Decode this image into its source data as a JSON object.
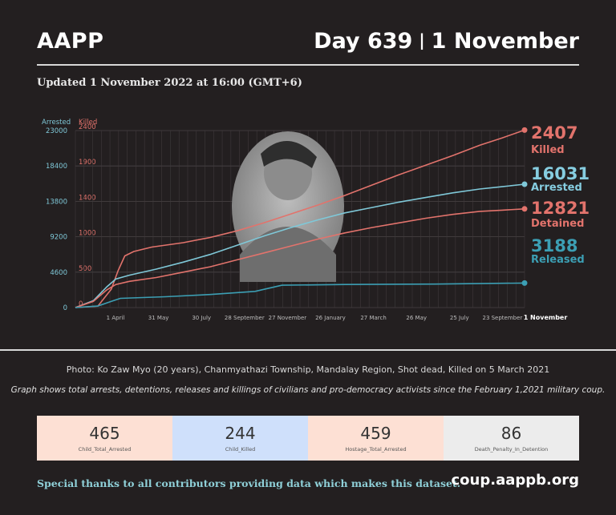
{
  "header": {
    "org": "AAPP",
    "day_label": "Day 639",
    "separator": "|",
    "date_label": "1 November"
  },
  "updated": "Updated 1 November 2022 at 16:00 (GMT+6)",
  "chart_data": {
    "type": "line",
    "title": "",
    "x_ticks": [
      "1 April",
      "31 May",
      "30 July",
      "28 September",
      "27 November",
      "26 January",
      "27 March",
      "26 May",
      "25 July",
      "23 September",
      "1 November"
    ],
    "left_axis": {
      "label": "Arrested",
      "ticks": [
        0,
        4600,
        9200,
        13800,
        18400,
        23000
      ],
      "range": [
        0,
        23000
      ],
      "color": "#7fc8d8"
    },
    "right_axis": {
      "label": "Killed",
      "ticks": [
        0,
        500,
        1000,
        1400,
        1900,
        2400
      ],
      "range": [
        0,
        2400
      ],
      "color": "#e2736c"
    },
    "grid": true,
    "series": [
      {
        "name": "Killed",
        "axis": "killed",
        "color": "#e2736c",
        "latest": "2407",
        "points": [
          [
            0,
            0
          ],
          [
            0.05,
            20
          ],
          [
            0.08,
            250
          ],
          [
            0.095,
            500
          ],
          [
            0.11,
            700
          ],
          [
            0.13,
            760
          ],
          [
            0.17,
            820
          ],
          [
            0.24,
            880
          ],
          [
            0.3,
            950
          ],
          [
            0.36,
            1040
          ],
          [
            0.42,
            1150
          ],
          [
            0.48,
            1270
          ],
          [
            0.54,
            1390
          ],
          [
            0.6,
            1520
          ],
          [
            0.66,
            1660
          ],
          [
            0.72,
            1800
          ],
          [
            0.78,
            1930
          ],
          [
            0.84,
            2060
          ],
          [
            0.9,
            2200
          ],
          [
            0.95,
            2300
          ],
          [
            1.0,
            2407
          ]
        ]
      },
      {
        "name": "Arrested",
        "axis": "arrested",
        "color": "#7fc8d8",
        "latest": "16031",
        "points": [
          [
            0,
            0
          ],
          [
            0.04,
            900
          ],
          [
            0.07,
            2700
          ],
          [
            0.09,
            3700
          ],
          [
            0.12,
            4200
          ],
          [
            0.18,
            5000
          ],
          [
            0.24,
            5900
          ],
          [
            0.3,
            6900
          ],
          [
            0.36,
            8100
          ],
          [
            0.42,
            9300
          ],
          [
            0.48,
            10400
          ],
          [
            0.54,
            11400
          ],
          [
            0.6,
            12300
          ],
          [
            0.66,
            13000
          ],
          [
            0.72,
            13700
          ],
          [
            0.78,
            14300
          ],
          [
            0.84,
            14900
          ],
          [
            0.9,
            15400
          ],
          [
            0.95,
            15700
          ],
          [
            1.0,
            16031
          ]
        ]
      },
      {
        "name": "Detained",
        "axis": "arrested",
        "color": "#e2736c",
        "latest": "12821",
        "points": [
          [
            0,
            0
          ],
          [
            0.04,
            800
          ],
          [
            0.07,
            2300
          ],
          [
            0.09,
            3000
          ],
          [
            0.12,
            3400
          ],
          [
            0.18,
            3900
          ],
          [
            0.24,
            4600
          ],
          [
            0.3,
            5300
          ],
          [
            0.36,
            6200
          ],
          [
            0.42,
            7100
          ],
          [
            0.48,
            8000
          ],
          [
            0.54,
            8900
          ],
          [
            0.6,
            9700
          ],
          [
            0.66,
            10400
          ],
          [
            0.72,
            11000
          ],
          [
            0.78,
            11600
          ],
          [
            0.84,
            12100
          ],
          [
            0.9,
            12500
          ],
          [
            0.95,
            12650
          ],
          [
            1.0,
            12821
          ]
        ]
      },
      {
        "name": "Released",
        "axis": "arrested",
        "color": "#3c9fb4",
        "latest": "3188",
        "points": [
          [
            0,
            0
          ],
          [
            0.05,
            200
          ],
          [
            0.08,
            800
          ],
          [
            0.1,
            1200
          ],
          [
            0.2,
            1400
          ],
          [
            0.3,
            1700
          ],
          [
            0.4,
            2100
          ],
          [
            0.46,
            2900
          ],
          [
            0.6,
            3000
          ],
          [
            0.8,
            3050
          ],
          [
            1.0,
            3188
          ]
        ]
      }
    ]
  },
  "photo_caption": "Photo: Ko Zaw Myo (20 years), Chanmyathazi Township, Mandalay Region, Shot dead, Killed on 5 March 2021",
  "graph_note": "Graph shows total arrests, detentions, releases and killings of civilians and pro-democracy activists since the February 1,2021 military coup.",
  "stats": [
    {
      "value": "465",
      "label": "Child_Total_Arrested",
      "color": "#fde0d4"
    },
    {
      "value": "244",
      "label": "Child_Killed",
      "color": "#cfe0fb"
    },
    {
      "value": "459",
      "label": "Hostage_Total_Arrested",
      "color": "#fde0d4"
    },
    {
      "value": "86",
      "label": "Death_Penalty_In_Detention",
      "color": "#ececec"
    }
  ],
  "footer": {
    "thanks": "Special thanks to all contributors providing data which makes this dataset.",
    "site": "coup.aappb.org"
  }
}
